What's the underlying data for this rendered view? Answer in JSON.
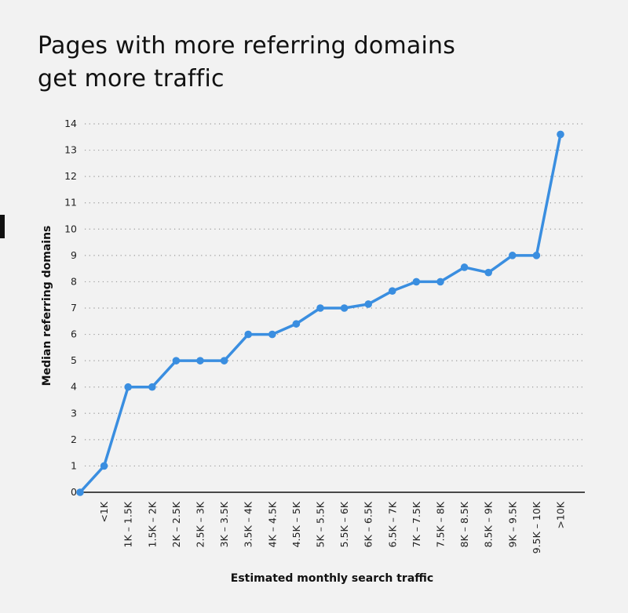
{
  "title_lines": [
    "Pages with more referring domains",
    "get more traffic"
  ],
  "chart_data": {
    "type": "line",
    "title": "Pages with more referring domains get more traffic",
    "xlabel": "Estimated monthly search traffic",
    "ylabel": "Median referring domains",
    "ylim": [
      0,
      14
    ],
    "yticks": [
      0,
      1,
      2,
      3,
      4,
      5,
      6,
      7,
      8,
      9,
      10,
      11,
      12,
      13,
      14
    ],
    "grid": "horizontal dotted",
    "categories": [
      "",
      "<1K",
      "1K – 1.5K",
      "1.5K – 2K",
      "2K – 2.5K",
      "2.5K – 3K",
      "3K – 3.5K",
      "3.5K – 4K",
      "4K – 4.5K",
      "4.5K – 5K",
      "5K – 5.5K",
      "5.5K – 6K",
      "6K – 6.5K",
      "6.5K – 7K",
      "7K – 7.5K",
      "7.5K – 8K",
      "8K – 8.5K",
      "8.5K – 9K",
      "9K – 9.5K",
      "9.5K – 10K",
      ">10K"
    ],
    "values": [
      0,
      1,
      4,
      4,
      5,
      5,
      5,
      6,
      6,
      6.4,
      7,
      7,
      7.15,
      7.65,
      8,
      8,
      8.55,
      8.35,
      9,
      9,
      13.6
    ],
    "color": "#3a8ee0"
  }
}
